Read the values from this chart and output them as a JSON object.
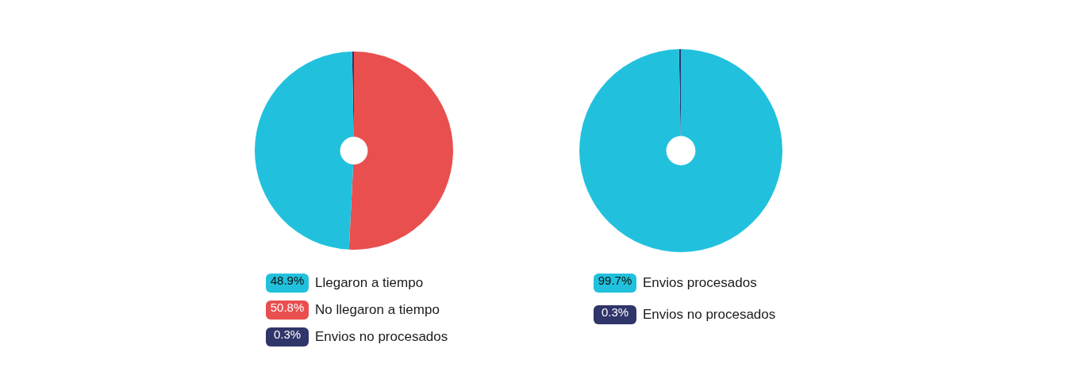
{
  "chart_data": [
    {
      "type": "donut",
      "categories": [
        "Llegaron a tiempo",
        "No llegaron a tiempo",
        "Envios no procesados"
      ],
      "values": [
        48.9,
        50.8,
        0.3
      ],
      "value_labels": [
        "48.9%",
        "50.8%",
        "0.3%"
      ],
      "colors": [
        "#21c1dd",
        "#e94f4f",
        "#30356a"
      ],
      "legend": "bottom"
    },
    {
      "type": "donut",
      "categories": [
        "Envios procesados",
        "Envios no procesados"
      ],
      "values": [
        99.7,
        0.3
      ],
      "value_labels": [
        "99.7%",
        "0.3%"
      ],
      "colors": [
        "#21c1dd",
        "#30356a"
      ],
      "legend": "bottom"
    }
  ]
}
